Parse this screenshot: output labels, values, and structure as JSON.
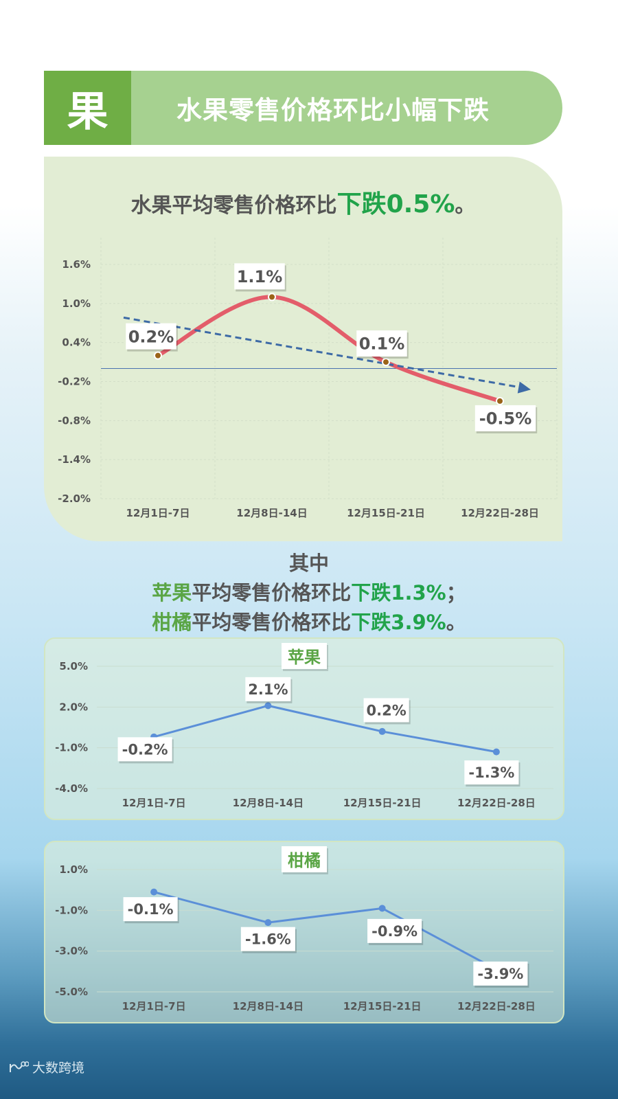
{
  "header": {
    "badge": "果",
    "title": "水果零售价格环比小幅下跌"
  },
  "summary": {
    "prefix": "水果平均零售价格环比",
    "highlight": "下跌0.5%",
    "suffix": "。"
  },
  "detail": {
    "heading": "其中",
    "line1": {
      "fruit": "苹果",
      "middle": "平均零售价格环比",
      "highlight": "下跌1.3%",
      "suffix": "；"
    },
    "line2": {
      "fruit": "柑橘",
      "middle": "平均零售价格环比",
      "highlight": "下跌3.9%",
      "suffix": "。"
    }
  },
  "footer": {
    "brand": "大数跨境"
  },
  "chart_data": [
    {
      "type": "line",
      "title": "水果平均零售价格环比",
      "categories": [
        "12月1日-7日",
        "12月8日-14日",
        "12月15日-21日",
        "12月22日-28日"
      ],
      "values": [
        0.2,
        1.1,
        0.1,
        -0.5
      ],
      "data_labels": [
        "0.2%",
        "1.1%",
        "0.1%",
        "-0.5%"
      ],
      "y_ticks": [
        "1.6%",
        "1.0%",
        "0.4%",
        "-0.2%",
        "-0.8%",
        "-1.4%",
        "-2.0%"
      ],
      "ylim": [
        -2.0,
        1.6
      ],
      "trendline": "dashed",
      "colors": {
        "line": "#e35d6a",
        "trend": "#3d6aa6",
        "marker": "#9a6418"
      }
    },
    {
      "type": "line",
      "title": "苹果",
      "categories": [
        "12月1日-7日",
        "12月8日-14日",
        "12月15日-21日",
        "12月22日-28日"
      ],
      "values": [
        -0.2,
        2.1,
        0.2,
        -1.3
      ],
      "data_labels": [
        "-0.2%",
        "2.1%",
        "0.2%",
        "-1.3%"
      ],
      "y_ticks": [
        "5.0%",
        "2.0%",
        "-1.0%",
        "-4.0%"
      ],
      "ylim": [
        -4.0,
        5.0
      ],
      "colors": {
        "line": "#5b8fd8"
      }
    },
    {
      "type": "line",
      "title": "柑橘",
      "categories": [
        "12月1日-7日",
        "12月8日-14日",
        "12月15日-21日",
        "12月22日-28日"
      ],
      "values": [
        -0.1,
        -1.6,
        -0.9,
        -3.9
      ],
      "data_labels": [
        "-0.1%",
        "-1.6%",
        "-0.9%",
        "-3.9%"
      ],
      "y_ticks": [
        "1.0%",
        "-1.0%",
        "-3.0%",
        "-5.0%"
      ],
      "ylim": [
        -5.0,
        1.0
      ],
      "colors": {
        "line": "#5b8fd8"
      }
    }
  ]
}
